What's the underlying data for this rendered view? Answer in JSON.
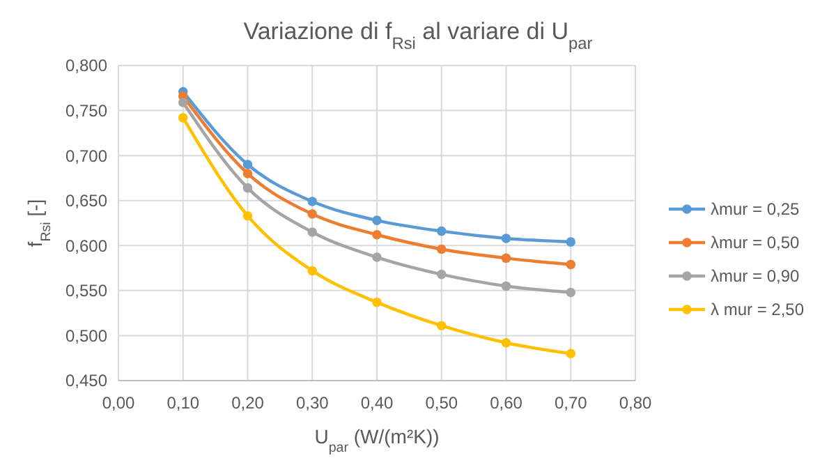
{
  "chart_data": {
    "type": "line",
    "title": "Variazione di f$_{Rsi}$ al variare di U$_{par}$",
    "xlabel": "U$_{par}$ (W/(m²K))",
    "ylabel": "f$_{Rsi}$ [-]",
    "x": [
      0.1,
      0.2,
      0.3,
      0.4,
      0.5,
      0.6,
      0.7
    ],
    "series": [
      {
        "name": "λmur = 0,25",
        "color": "#5b9bd5",
        "values": [
          0.771,
          0.69,
          0.649,
          0.628,
          0.616,
          0.608,
          0.604
        ]
      },
      {
        "name": "λmur = 0,50",
        "color": "#ed7d31",
        "values": [
          0.766,
          0.68,
          0.635,
          0.612,
          0.596,
          0.586,
          0.579
        ]
      },
      {
        "name": "λmur = 0,90",
        "color": "#a5a5a5",
        "values": [
          0.759,
          0.664,
          0.615,
          0.587,
          0.568,
          0.555,
          0.548
        ]
      },
      {
        "name": "λ mur = 2,50",
        "color": "#ffc000",
        "values": [
          0.742,
          0.633,
          0.572,
          0.537,
          0.511,
          0.492,
          0.48
        ]
      }
    ],
    "xlim": [
      0,
      0.8
    ],
    "xticks": [
      {
        "value": 0,
        "label": "0,00"
      },
      {
        "value": 0.1,
        "label": "0,10"
      },
      {
        "value": 0.2,
        "label": "0,20"
      },
      {
        "value": 0.3,
        "label": "0,30"
      },
      {
        "value": 0.4,
        "label": "0,40"
      },
      {
        "value": 0.5,
        "label": "0,50"
      },
      {
        "value": 0.6,
        "label": "0,60"
      },
      {
        "value": 0.7,
        "label": "0,70"
      },
      {
        "value": 0.8,
        "label": "0,80"
      }
    ],
    "ylim": [
      0.45,
      0.8
    ],
    "yticks": [
      {
        "value": 0.45,
        "label": "0,450"
      },
      {
        "value": 0.5,
        "label": "0,500"
      },
      {
        "value": 0.55,
        "label": "0,550"
      },
      {
        "value": 0.6,
        "label": "0,600"
      },
      {
        "value": 0.65,
        "label": "0,650"
      },
      {
        "value": 0.7,
        "label": "0,700"
      },
      {
        "value": 0.75,
        "label": "0,750"
      },
      {
        "value": 0.8,
        "label": "0,800"
      }
    ],
    "grid": true,
    "legend": "right",
    "marker": "circle",
    "line_style": "solid"
  }
}
